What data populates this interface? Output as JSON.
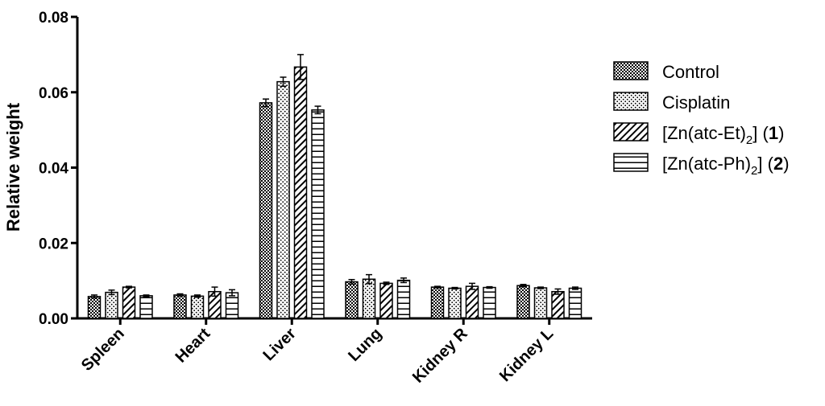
{
  "chart_data": {
    "type": "bar",
    "title": "",
    "xlabel": "",
    "ylabel": "Relative weight",
    "ylim": [
      0,
      0.08
    ],
    "yticks": [
      "0.00",
      "0.02",
      "0.04",
      "0.06",
      "0.08"
    ],
    "grid": false,
    "legend_position": "right",
    "categories": [
      "Spleen",
      "Heart",
      "Liver",
      "Lung",
      "Kidney R",
      "Kidney L"
    ],
    "series": [
      {
        "name": "Control",
        "pattern": "crosshatch",
        "values": [
          0.0058,
          0.0062,
          0.0572,
          0.0097,
          0.0083,
          0.0087
        ],
        "errors": [
          0.0004,
          0.0003,
          0.001,
          0.0006,
          0.0002,
          0.0003
        ]
      },
      {
        "name": "Cisplatin",
        "pattern": "dots",
        "values": [
          0.0069,
          0.0059,
          0.0628,
          0.0104,
          0.008,
          0.0081
        ],
        "errors": [
          0.0006,
          0.0003,
          0.0012,
          0.0012,
          0.0002,
          0.0002
        ]
      },
      {
        "name": "[Zn(atc-Et)2] (1)",
        "pattern": "diagonal",
        "values": [
          0.0083,
          0.0071,
          0.0667,
          0.0093,
          0.0085,
          0.0071
        ],
        "errors": [
          0.0002,
          0.0012,
          0.0033,
          0.0003,
          0.0008,
          0.0007
        ]
      },
      {
        "name": "[Zn(atc-Ph)2] (2)",
        "pattern": "horizontal",
        "values": [
          0.006,
          0.0068,
          0.0553,
          0.0101,
          0.0082,
          0.008
        ],
        "errors": [
          0.0002,
          0.0008,
          0.001,
          0.0006,
          0.0002,
          0.0003
        ]
      }
    ],
    "legend": [
      {
        "text": "Control"
      },
      {
        "text": "Cisplatin"
      },
      {
        "pre": "[Zn(atc-Et)",
        "sub": "2",
        "mid": "] (",
        "bold": "1",
        "post": ")"
      },
      {
        "pre": "[Zn(atc-Ph)",
        "sub": "2",
        "mid": "] (",
        "bold": "2",
        "post": ")"
      }
    ]
  }
}
